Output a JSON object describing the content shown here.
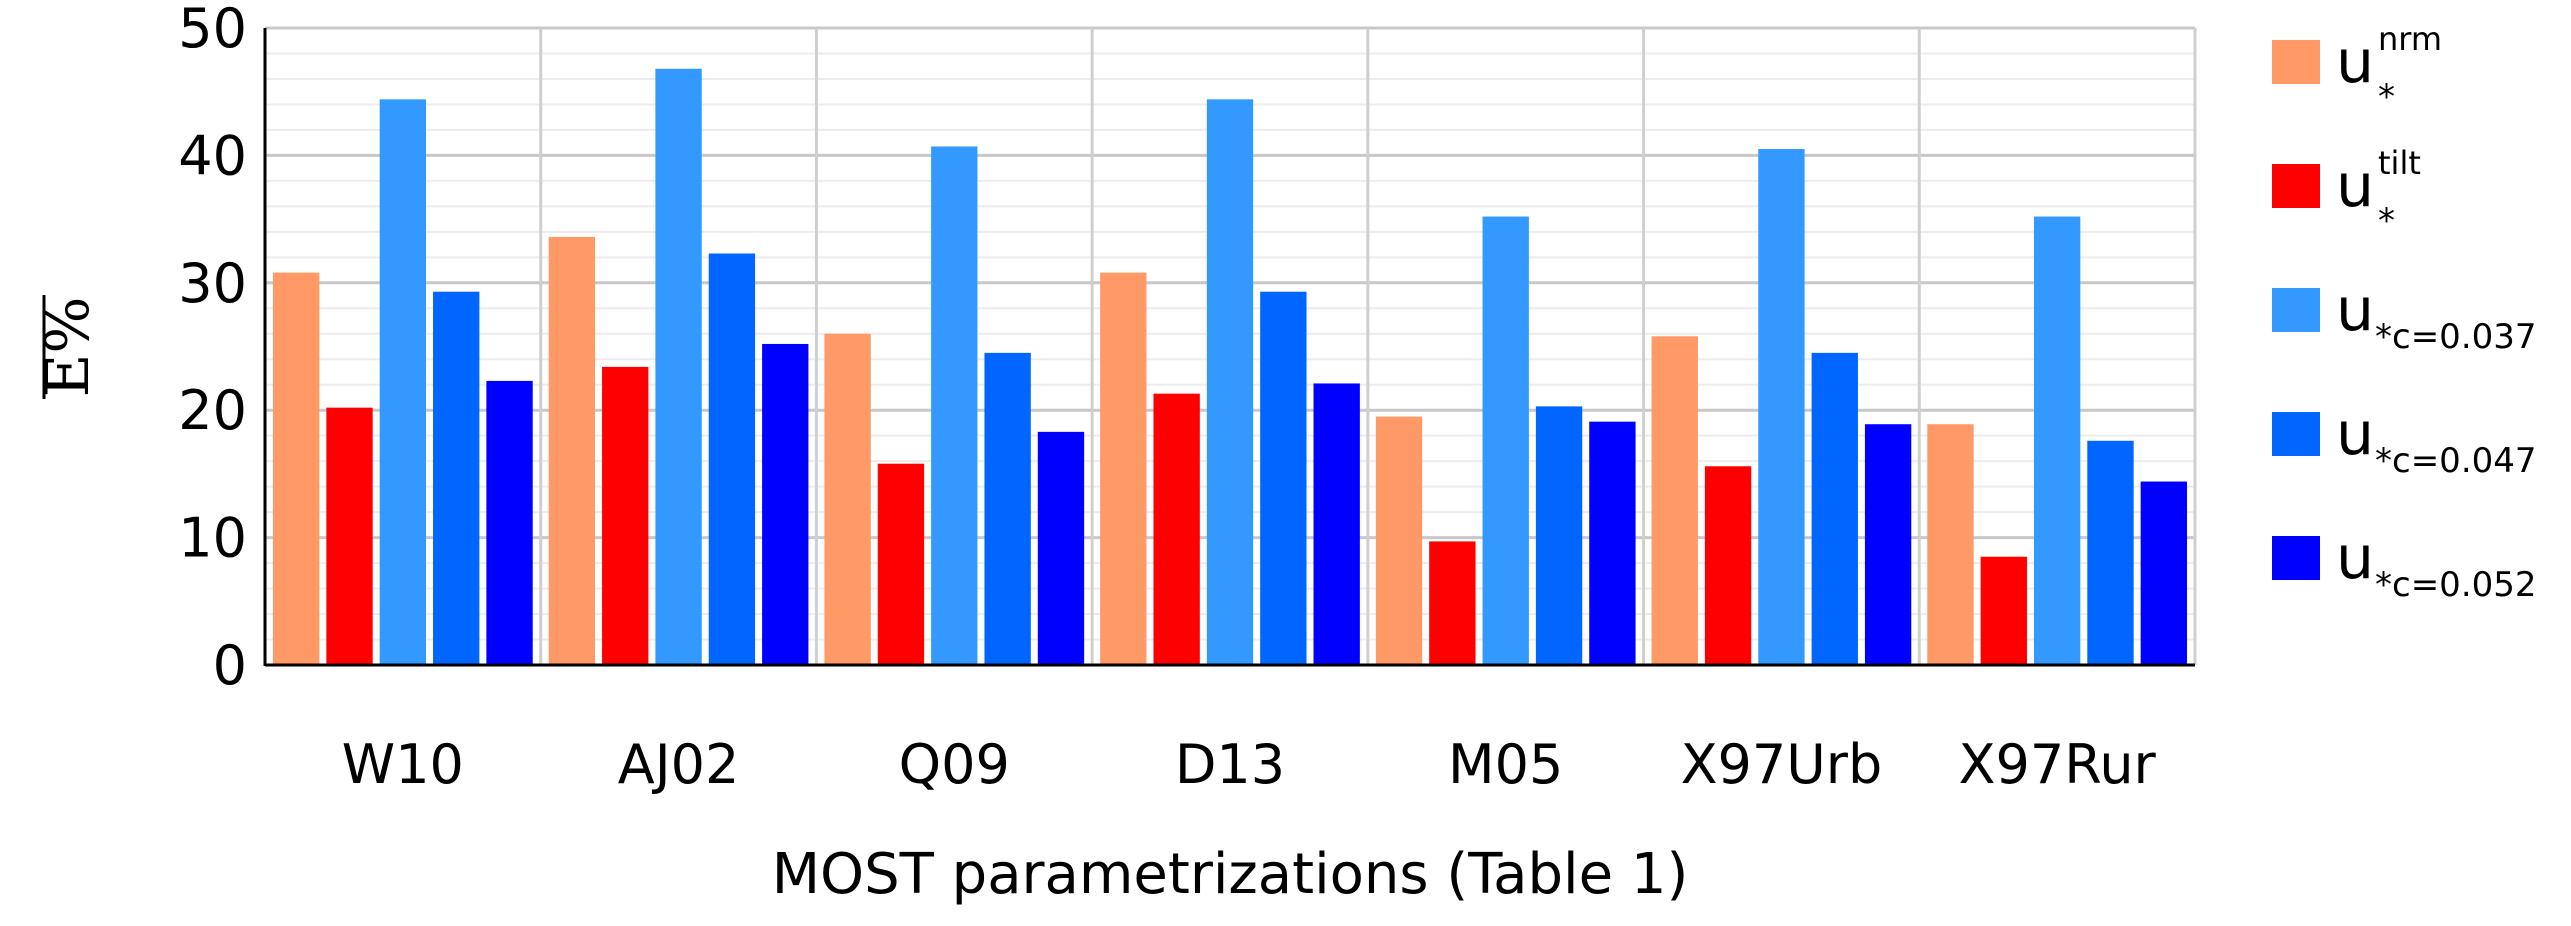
{
  "chart_data": {
    "type": "bar",
    "ylabel": "E%",
    "xlabel": "MOST parametrizations (Table 1)",
    "ylim": [
      0,
      50
    ],
    "yticks": [
      0,
      10,
      20,
      30,
      40,
      50
    ],
    "grid": true,
    "legend_position": "right",
    "categories": [
      "W10",
      "AJ02",
      "Q09",
      "D13",
      "M05",
      "X97Urb",
      "X97Rur"
    ],
    "series": [
      {
        "name": "u*nrm",
        "base": "u",
        "sup": "nrm",
        "sub": "*",
        "color": "#ff9966",
        "values": [
          30.8,
          33.6,
          26.0,
          30.8,
          19.5,
          25.8,
          18.9
        ]
      },
      {
        "name": "u*tilt",
        "base": "u",
        "sup": "tilt",
        "sub": "*",
        "color": "#ff0000",
        "values": [
          20.2,
          23.4,
          15.8,
          21.3,
          9.7,
          15.6,
          8.5
        ]
      },
      {
        "name": "u*c=0.037",
        "base": "u",
        "sup": "",
        "sub": "*c=0.037",
        "color": "#3399ff",
        "values": [
          44.4,
          46.8,
          40.7,
          44.4,
          35.2,
          40.5,
          35.2
        ]
      },
      {
        "name": "u*c=0.047",
        "base": "u",
        "sup": "",
        "sub": "*c=0.047",
        "color": "#0066ff",
        "values": [
          29.3,
          32.3,
          24.5,
          29.3,
          20.3,
          24.5,
          17.6
        ]
      },
      {
        "name": "u*c=0.052",
        "base": "u",
        "sup": "",
        "sub": "*c=0.052",
        "color": "#0000ff",
        "values": [
          22.3,
          25.2,
          18.3,
          22.1,
          19.1,
          18.9,
          14.4
        ]
      }
    ]
  }
}
